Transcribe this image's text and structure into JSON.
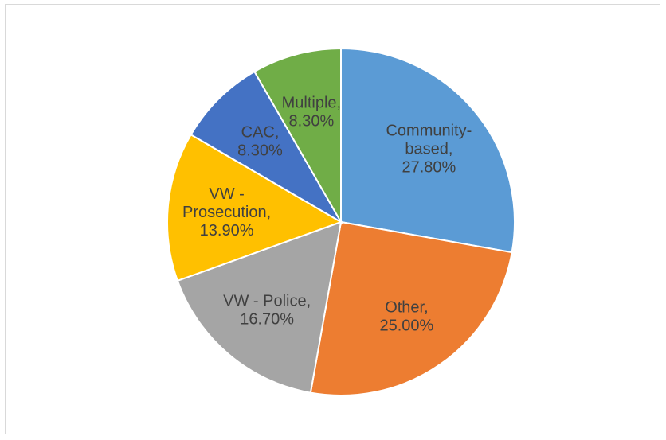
{
  "chart_data": {
    "type": "pie",
    "title": "",
    "slices": [
      {
        "category": "Community-based",
        "value": 27.8,
        "label_lines": [
          "Community-",
          "based,",
          "27.80%"
        ],
        "color": "#5b9bd5"
      },
      {
        "category": "Other",
        "value": 25.0,
        "label_lines": [
          "Other,",
          "25.00%"
        ],
        "color": "#ed7d31"
      },
      {
        "category": "VW - Police",
        "value": 16.7,
        "label_lines": [
          "VW - Police,",
          "16.70%"
        ],
        "color": "#a5a5a5"
      },
      {
        "category": "VW - Prosecution",
        "value": 13.9,
        "label_lines": [
          "VW -",
          "Prosecution,",
          "13.90%"
        ],
        "color": "#ffc000"
      },
      {
        "category": "CAC",
        "value": 8.3,
        "label_lines": [
          "CAC,",
          "8.30%"
        ],
        "color": "#4472c4"
      },
      {
        "category": "Multiple",
        "value": 8.3,
        "label_lines": [
          "Multiple,",
          "8.30%"
        ],
        "color": "#70ad47"
      }
    ],
    "start_angle": "12 o'clock",
    "direction": "clockwise",
    "legend": "none"
  }
}
